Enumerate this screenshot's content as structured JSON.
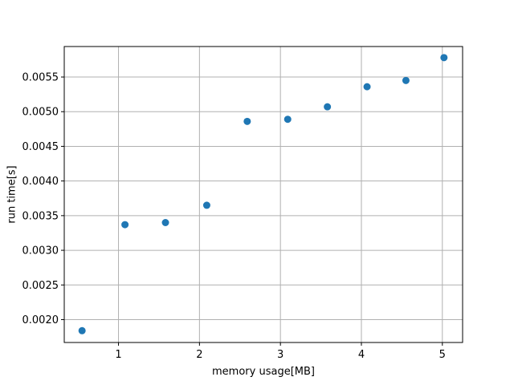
{
  "chart_data": {
    "type": "scatter",
    "title": "",
    "xlabel": "memory usage[MB]",
    "ylabel": "run time[s]",
    "xlim": [
      0.33,
      5.25
    ],
    "ylim": [
      0.00167,
      0.00594
    ],
    "xticks": [
      1,
      2,
      3,
      4,
      5
    ],
    "xtick_labels": [
      "1",
      "2",
      "3",
      "4",
      "5"
    ],
    "yticks": [
      0.002,
      0.0025,
      0.003,
      0.0035,
      0.004,
      0.0045,
      0.005,
      0.0055
    ],
    "ytick_labels": [
      "0.0020",
      "0.0025",
      "0.0030",
      "0.0035",
      "0.0040",
      "0.0045",
      "0.0050",
      "0.0055"
    ],
    "grid": true,
    "marker_color": "#1f77b4",
    "grid_color": "#b0b0b0",
    "series": [
      {
        "x": [
          0.55,
          1.08,
          1.58,
          2.09,
          2.59,
          3.09,
          3.58,
          4.07,
          4.55,
          5.02
        ],
        "y": [
          0.00184,
          0.00337,
          0.0034,
          0.00365,
          0.00486,
          0.00489,
          0.00507,
          0.00536,
          0.00545,
          0.00578
        ]
      }
    ]
  }
}
